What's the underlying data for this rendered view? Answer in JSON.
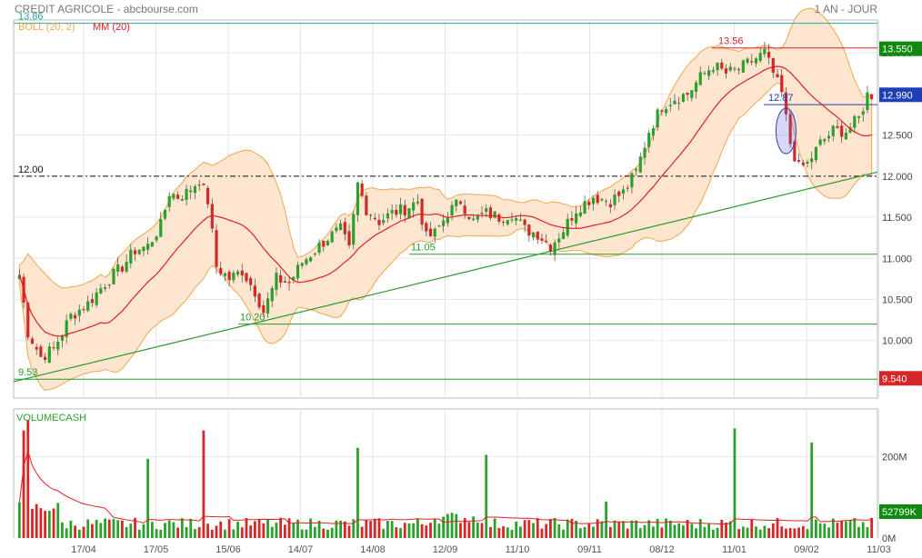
{
  "header": {
    "title": "CREDIT AGRICOLE - abcbourse.com",
    "period": "1 AN - JOUR"
  },
  "legend": {
    "boll": "BOLL (20, 2)",
    "mm": "MM (20)"
  },
  "volume_label": "VOLUMECASH",
  "colors": {
    "up": "#2ca02c",
    "down": "#d62728",
    "ma": "#e02020",
    "band_fill": "#fde6cf",
    "band_line": "#f3a64f",
    "trend": "#2a9a2a",
    "price_tag": "#0e8a0e",
    "last_tag": "#1f3fb8",
    "support_tag": "#d62728"
  },
  "chart_data": {
    "type": "candlestick",
    "title": "CREDIT AGRICOLE",
    "price_axis": {
      "min": 9.3,
      "max": 13.9,
      "ticks": [
        10.0,
        10.5,
        11.0,
        11.5,
        12.0,
        12.5,
        13.0,
        13.5
      ],
      "tick_labels": [
        "10.000",
        "10.500",
        "11.000",
        "11.500",
        "12.000",
        "12.500",
        "13.000",
        "13.500"
      ]
    },
    "volume_axis": {
      "ticks": [
        0,
        200
      ],
      "tick_labels": [
        "0M",
        "200M"
      ]
    },
    "x_labels": [
      "17/04",
      "17/05",
      "15/06",
      "14/07",
      "14/08",
      "12/09",
      "11/10",
      "09/11",
      "08/12",
      "11/01",
      "09/02",
      "11/03"
    ],
    "tags": {
      "resistance": "13.550",
      "last": "12.990",
      "support": "9.540",
      "volume_last": "52799K"
    },
    "annotations": [
      {
        "text": "13.86",
        "value": 13.86
      },
      {
        "text": "13.56",
        "value": 13.56
      },
      {
        "text": "12.87",
        "value": 12.87
      },
      {
        "text": "12.00",
        "value": 12.0
      },
      {
        "text": "11.05",
        "value": 11.05
      },
      {
        "text": "10.20",
        "value": 10.2
      },
      {
        "text": "9.53",
        "value": 9.53
      }
    ],
    "horizontal_levels": [
      13.86,
      13.56,
      12.87,
      12.0,
      11.05,
      10.2,
      9.53
    ],
    "trendline": {
      "start": 9.5,
      "end": 12.05
    },
    "close_path": [
      [
        0,
        10.8
      ],
      [
        2,
        10.1
      ],
      [
        5,
        9.8
      ],
      [
        8,
        9.9
      ],
      [
        12,
        10.3
      ],
      [
        16,
        10.45
      ],
      [
        20,
        10.7
      ],
      [
        24,
        10.9
      ],
      [
        27,
        11.1
      ],
      [
        30,
        11.15
      ],
      [
        33,
        11.4
      ],
      [
        35,
        11.8
      ],
      [
        37,
        11.75
      ],
      [
        39,
        11.8
      ],
      [
        42,
        11.95
      ],
      [
        44,
        11.7
      ],
      [
        46,
        10.9
      ],
      [
        49,
        10.75
      ],
      [
        52,
        10.85
      ],
      [
        55,
        10.6
      ],
      [
        57,
        10.35
      ],
      [
        60,
        10.75
      ],
      [
        63,
        10.7
      ],
      [
        66,
        10.95
      ],
      [
        69,
        11.1
      ],
      [
        72,
        11.25
      ],
      [
        75,
        11.35
      ],
      [
        77,
        11.1
      ],
      [
        79,
        11.9
      ],
      [
        81,
        11.6
      ],
      [
        84,
        11.45
      ],
      [
        87,
        11.55
      ],
      [
        90,
        11.6
      ],
      [
        93,
        11.7
      ],
      [
        95,
        11.25
      ],
      [
        97,
        11.3
      ],
      [
        100,
        11.55
      ],
      [
        103,
        11.7
      ],
      [
        106,
        11.45
      ],
      [
        109,
        11.55
      ],
      [
        112,
        11.5
      ],
      [
        115,
        11.55
      ],
      [
        118,
        11.35
      ],
      [
        121,
        11.3
      ],
      [
        124,
        11.15
      ],
      [
        127,
        11.35
      ],
      [
        130,
        11.6
      ],
      [
        134,
        11.75
      ],
      [
        138,
        11.7
      ],
      [
        141,
        11.8
      ],
      [
        144,
        12.05
      ],
      [
        147,
        12.55
      ],
      [
        150,
        12.85
      ],
      [
        153,
        12.95
      ],
      [
        156,
        13.0
      ],
      [
        159,
        13.2
      ],
      [
        162,
        13.35
      ],
      [
        165,
        13.25
      ],
      [
        168,
        13.3
      ],
      [
        171,
        13.4
      ],
      [
        174,
        13.5
      ],
      [
        176,
        13.25
      ],
      [
        178,
        13.0
      ],
      [
        180,
        12.4
      ],
      [
        182,
        12.1
      ],
      [
        184,
        12.15
      ],
      [
        187,
        12.4
      ],
      [
        190,
        12.55
      ],
      [
        193,
        12.55
      ],
      [
        196,
        12.7
      ],
      [
        198,
        12.99
      ]
    ],
    "volume_spikes": [
      [
        1,
        265
      ],
      [
        2,
        290
      ],
      [
        30,
        195
      ],
      [
        43,
        265
      ],
      [
        79,
        222
      ],
      [
        109,
        205
      ],
      [
        167,
        270
      ],
      [
        137,
        90
      ],
      [
        185,
        235
      ]
    ]
  }
}
